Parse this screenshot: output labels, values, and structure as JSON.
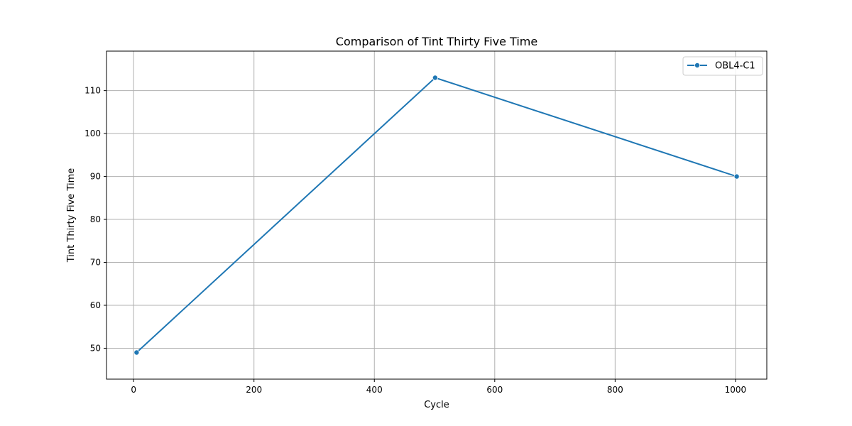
{
  "chart_data": {
    "type": "line",
    "title": "Comparison of Tint Thirty Five Time",
    "xlabel": "Cycle",
    "ylabel": "Tint Thirty Five Time",
    "x_ticks": [
      0,
      200,
      400,
      600,
      800,
      1000
    ],
    "y_ticks": [
      50,
      60,
      70,
      80,
      90,
      100,
      110
    ],
    "xlim": [
      -45,
      1052
    ],
    "ylim": [
      42.8,
      119.2
    ],
    "grid": true,
    "legend_position": "top-right",
    "series": [
      {
        "name": "OBL4-C1",
        "color": "#1f77b4",
        "marker": "circle",
        "x": [
          5,
          501,
          1002
        ],
        "y": [
          49,
          113,
          90
        ]
      }
    ]
  }
}
